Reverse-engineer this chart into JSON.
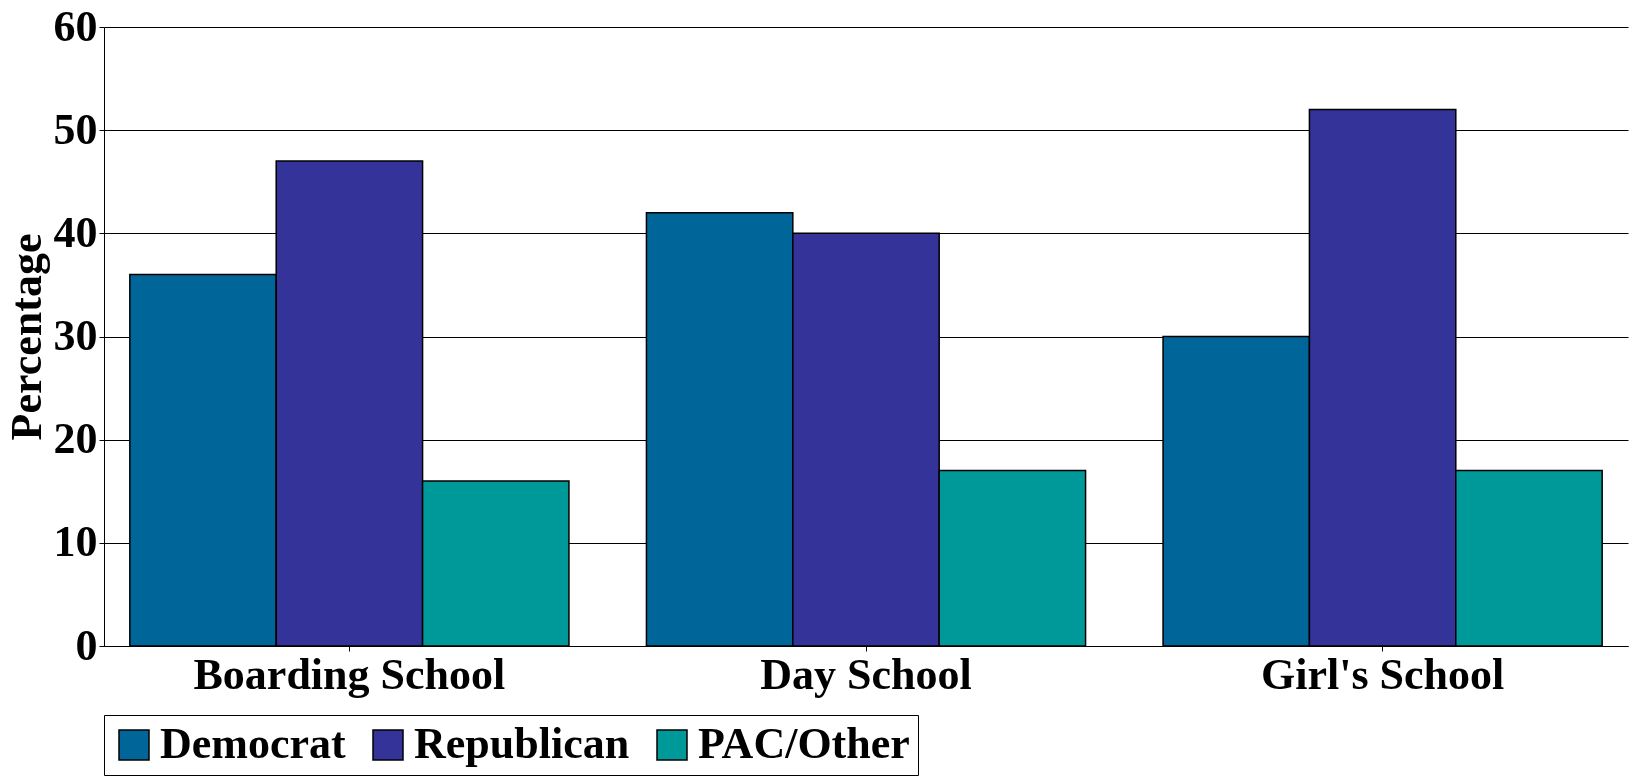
{
  "chart_data": {
    "type": "bar",
    "ylabel": "Percentage",
    "categories": [
      "Boarding School",
      "Day School",
      "Girl's School"
    ],
    "series": [
      {
        "name": "Democrat",
        "color": "#006699",
        "values": [
          36,
          42,
          30
        ]
      },
      {
        "name": "Republican",
        "color": "#333399",
        "values": [
          47,
          40,
          52
        ]
      },
      {
        "name": "PAC/Other",
        "color": "#009999",
        "values": [
          16,
          17,
          17
        ]
      }
    ],
    "ylim": [
      0,
      60
    ],
    "yticks": [
      0,
      10,
      20,
      30,
      40,
      50,
      60
    ],
    "grid": "y",
    "legend": "bottom"
  }
}
